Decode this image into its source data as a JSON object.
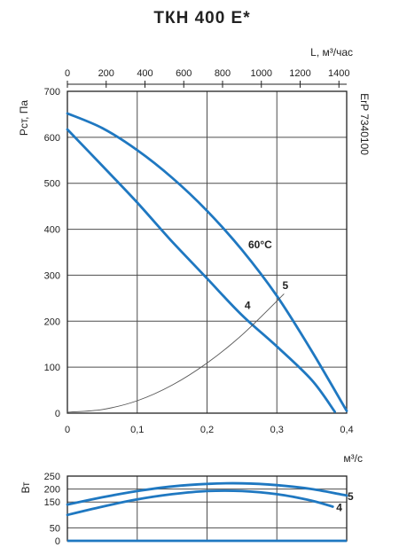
{
  "chart_data": [
    {
      "type": "line",
      "title": "ТКН 400 Е*",
      "x_top_label": "L, м³/час",
      "x_top_ticks": [
        "0",
        "200",
        "400",
        "600",
        "800",
        "1000",
        "1200",
        "1400"
      ],
      "x_top_range": [
        0,
        1440
      ],
      "x_bottom_label": "м³/с",
      "x_bottom_ticks": [
        "0",
        "0,1",
        "0,2",
        "0,3",
        "0,4"
      ],
      "xlim": [
        0,
        0.4
      ],
      "ylabel": "Рст, Па",
      "y_ticks": [
        "0",
        "100",
        "200",
        "300",
        "400",
        "500",
        "600",
        "700"
      ],
      "ylim": [
        0,
        700
      ],
      "right_label": "ErP 7340100",
      "annotation": "60°C",
      "grid": true,
      "series": [
        {
          "name": "5",
          "x": [
            0,
            0.05,
            0.1,
            0.15,
            0.2,
            0.25,
            0.3,
            0.35,
            0.4
          ],
          "y": [
            652,
            620,
            572,
            512,
            440,
            355,
            255,
            135,
            5
          ]
        },
        {
          "name": "4",
          "x": [
            0,
            0.05,
            0.1,
            0.15,
            0.2,
            0.25,
            0.3,
            0.35,
            0.383
          ],
          "y": [
            617,
            538,
            458,
            373,
            293,
            213,
            145,
            72,
            3
          ]
        },
        {
          "name": "system",
          "x": [
            0,
            0.05,
            0.1,
            0.15,
            0.2,
            0.25,
            0.31
          ],
          "y": [
            2,
            8,
            27,
            61,
            109,
            170,
            259
          ]
        }
      ],
      "colors": {
        "curve": "#1f78c1",
        "system": "#555555",
        "grid": "#4d4d4d"
      }
    },
    {
      "type": "line",
      "ylabel": "Вт",
      "y_ticks": [
        "0",
        "50",
        "150",
        "200",
        "250"
      ],
      "ylim": [
        0,
        250
      ],
      "xlim": [
        0,
        0.4
      ],
      "grid": true,
      "series": [
        {
          "name": "5",
          "x": [
            0,
            0.05,
            0.1,
            0.15,
            0.2,
            0.25,
            0.3,
            0.35,
            0.4
          ],
          "y": [
            140,
            168,
            192,
            210,
            220,
            222,
            215,
            200,
            175
          ]
        },
        {
          "name": "4",
          "x": [
            0,
            0.05,
            0.1,
            0.15,
            0.2,
            0.25,
            0.3,
            0.35,
            0.38
          ],
          "y": [
            100,
            132,
            160,
            180,
            192,
            192,
            180,
            155,
            132
          ]
        }
      ]
    }
  ]
}
